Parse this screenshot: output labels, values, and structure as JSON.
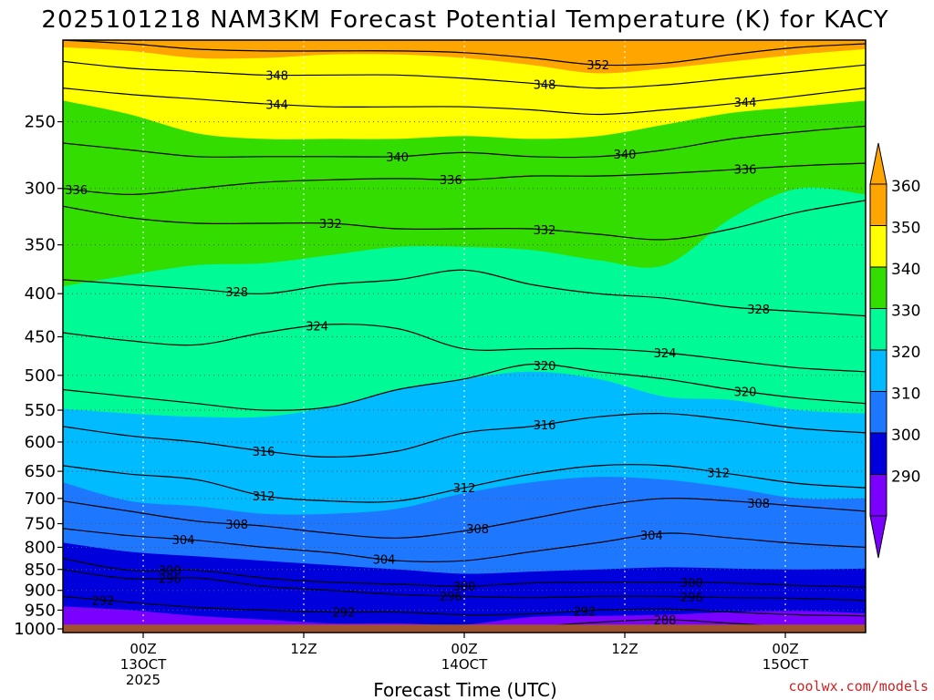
{
  "chart_data": {
    "type": "contour",
    "title": "2025101218 NAM3KM Forecast Potential Temperature (K) for KACY",
    "xlabel": "Forecast Time (UTC)",
    "ylabel": "",
    "y_scale": "log-pressure",
    "y_axis_units": "hPa",
    "ylim": [
      1000,
      200
    ],
    "y_ticks": [
      250,
      300,
      350,
      400,
      450,
      500,
      550,
      600,
      650,
      700,
      750,
      800,
      850,
      900,
      950,
      1000
    ],
    "x_ticks": [
      {
        "hours": 6,
        "line1": "00Z",
        "line2": "13OCT",
        "line3": "2025"
      },
      {
        "hours": 18,
        "line1": "12Z",
        "line2": "",
        "line3": ""
      },
      {
        "hours": 30,
        "line1": "00Z",
        "line2": "14OCT",
        "line3": ""
      },
      {
        "hours": 42,
        "line1": "12Z",
        "line2": "",
        "line3": ""
      },
      {
        "hours": 54,
        "line1": "00Z",
        "line2": "15OCT",
        "line3": ""
      }
    ],
    "xlim_hours": [
      0,
      60
    ],
    "grid": "dotted",
    "colorbar": {
      "placement": "right",
      "labels": [
        "360",
        "350",
        "340",
        "330",
        "320",
        "310",
        "300",
        "290"
      ],
      "bins": [
        {
          "from": 350,
          "to": 360,
          "color": "#FFA500"
        },
        {
          "from": 340,
          "to": 350,
          "color": "#FFFF00"
        },
        {
          "from": 330,
          "to": 340,
          "color": "#33DD00"
        },
        {
          "from": 320,
          "to": 330,
          "color": "#00FA96"
        },
        {
          "from": 310,
          "to": 320,
          "color": "#00BBFF"
        },
        {
          "from": 300,
          "to": 310,
          "color": "#1E78FF"
        },
        {
          "from": 290,
          "to": 300,
          "color": "#0000DD"
        },
        {
          "from": 280,
          "to": 290,
          "color": "#7A00FF"
        }
      ],
      "under_color": "#7A00FF",
      "over_color": "#FFA500"
    },
    "ground_color": "#A0522D",
    "contour_interval_K": 4,
    "isentropes": [
      {
        "theta": 288,
        "labels": [
          {
            "hours": 45,
            "text": "288"
          }
        ],
        "pressure": [
          1003,
          1003,
          1003,
          1003,
          1002,
          1001,
          1000,
          994,
          982,
          975,
          985,
          995,
          1000
        ]
      },
      {
        "theta": 292,
        "labels": [
          {
            "hours": 3,
            "text": "292"
          },
          {
            "hours": 21,
            "text": "292"
          },
          {
            "hours": 39,
            "text": "292"
          }
        ],
        "pressure": [
          915,
          930,
          943,
          950,
          955,
          955,
          962,
          960,
          950,
          947,
          955,
          962,
          965
        ]
      },
      {
        "theta": 296,
        "labels": [
          {
            "hours": 8,
            "text": "296"
          },
          {
            "hours": 29,
            "text": "296"
          },
          {
            "hours": 47,
            "text": "296"
          }
        ],
        "pressure": [
          850,
          872,
          870,
          890,
          900,
          910,
          915,
          918,
          915,
          915,
          918,
          920,
          925
        ]
      },
      {
        "theta": 300,
        "labels": [
          {
            "hours": 8,
            "text": "300"
          },
          {
            "hours": 30,
            "text": "300"
          },
          {
            "hours": 47,
            "text": "300"
          }
        ],
        "pressure": [
          825,
          852,
          852,
          870,
          880,
          885,
          890,
          882,
          880,
          880,
          882,
          888,
          892
        ]
      },
      {
        "theta": 304,
        "labels": [
          {
            "hours": 9,
            "text": "304"
          },
          {
            "hours": 24,
            "text": "304"
          },
          {
            "hours": 44,
            "text": "304"
          }
        ],
        "pressure": [
          760,
          775,
          785,
          800,
          812,
          830,
          830,
          810,
          790,
          770,
          780,
          792,
          800
        ]
      },
      {
        "theta": 308,
        "labels": [
          {
            "hours": 13,
            "text": "308"
          },
          {
            "hours": 31,
            "text": "308"
          },
          {
            "hours": 52,
            "text": "308"
          }
        ],
        "pressure": [
          705,
          725,
          745,
          755,
          770,
          780,
          765,
          740,
          715,
          700,
          705,
          715,
          725
        ]
      },
      {
        "theta": 312,
        "labels": [
          {
            "hours": 15,
            "text": "312"
          },
          {
            "hours": 30,
            "text": "312"
          },
          {
            "hours": 49,
            "text": "312"
          }
        ],
        "pressure": [
          640,
          655,
          665,
          695,
          705,
          705,
          680,
          655,
          640,
          640,
          655,
          672,
          680
        ]
      },
      {
        "theta": 316,
        "labels": [
          {
            "hours": 15,
            "text": "316"
          },
          {
            "hours": 36,
            "text": "316"
          }
        ],
        "pressure": [
          575,
          590,
          600,
          615,
          625,
          615,
          585,
          575,
          560,
          555,
          565,
          578,
          585
        ]
      },
      {
        "theta": 320,
        "labels": [
          {
            "hours": 36,
            "text": "320"
          },
          {
            "hours": 51,
            "text": "320"
          }
        ],
        "pressure": [
          520,
          530,
          540,
          550,
          545,
          520,
          505,
          485,
          495,
          505,
          520,
          532,
          540
        ]
      },
      {
        "theta": 324,
        "labels": [
          {
            "hours": 19,
            "text": "324"
          },
          {
            "hours": 45,
            "text": "324"
          }
        ],
        "pressure": [
          445,
          455,
          460,
          445,
          435,
          440,
          465,
          465,
          465,
          470,
          480,
          490,
          495
        ]
      },
      {
        "theta": 328,
        "labels": [
          {
            "hours": 13,
            "text": "328"
          },
          {
            "hours": 52,
            "text": "328"
          }
        ],
        "pressure": [
          385,
          390,
          395,
          400,
          390,
          385,
          375,
          390,
          400,
          405,
          415,
          420,
          425
        ]
      },
      {
        "theta": 332,
        "labels": [
          {
            "hours": 20,
            "text": "332"
          },
          {
            "hours": 36,
            "text": "332"
          }
        ],
        "pressure": [
          315,
          325,
          330,
          330,
          330,
          335,
          335,
          335,
          340,
          345,
          335,
          320,
          310
        ]
      },
      {
        "theta": 336,
        "labels": [
          {
            "hours": 1,
            "text": "336"
          },
          {
            "hours": 29,
            "text": "336"
          },
          {
            "hours": 51,
            "text": "336"
          }
        ],
        "pressure": [
          300,
          305,
          300,
          295,
          293,
          292,
          293,
          290,
          290,
          288,
          285,
          282,
          280
        ]
      },
      {
        "theta": 340,
        "labels": [
          {
            "hours": 25,
            "text": "340"
          },
          {
            "hours": 42,
            "text": "340"
          }
        ],
        "pressure": [
          265,
          270,
          275,
          275,
          275,
          275,
          272,
          275,
          275,
          270,
          262,
          257,
          253
        ]
      },
      {
        "theta": 344,
        "labels": [
          {
            "hours": 16,
            "text": "344"
          },
          {
            "hours": 51,
            "text": "344"
          }
        ],
        "pressure": [
          228,
          232,
          235,
          238,
          240,
          240,
          240,
          242,
          245,
          242,
          238,
          233,
          228
        ]
      },
      {
        "theta": 348,
        "labels": [
          {
            "hours": 16,
            "text": "348"
          },
          {
            "hours": 36,
            "text": "348"
          }
        ],
        "pressure": [
          212,
          216,
          218,
          220,
          220,
          220,
          222,
          225,
          228,
          226,
          222,
          218,
          214
        ]
      },
      {
        "theta": 352,
        "labels": [
          {
            "hours": 40,
            "text": "352"
          }
        ],
        "pressure": [
          200,
          202,
          205,
          206,
          206,
          206,
          207,
          210,
          214,
          213,
          208,
          204,
          202
        ]
      }
    ],
    "fill_layers": [
      {
        "color": "#FFA500",
        "pressure": [
          195,
          195,
          195,
          195,
          195,
          195,
          195,
          195,
          195,
          195,
          195,
          195,
          195
        ]
      },
      {
        "color": "#FFFF00",
        "pressure": [
          204,
          206,
          210,
          210,
          208,
          208,
          210,
          214,
          219,
          216,
          212,
          208,
          205
        ]
      },
      {
        "color": "#33DD00",
        "pressure": [
          236,
          245,
          258,
          262,
          262,
          262,
          260,
          262,
          260,
          252,
          244,
          240,
          236
        ]
      },
      {
        "color": "#00FA96",
        "pressure": [
          392,
          380,
          370,
          368,
          360,
          352,
          352,
          355,
          365,
          370,
          325,
          300,
          305
        ]
      },
      {
        "color": "#00BBFF",
        "pressure": [
          548,
          555,
          560,
          560,
          545,
          520,
          505,
          495,
          505,
          530,
          535,
          550,
          555
        ]
      },
      {
        "color": "#1E78FF",
        "pressure": [
          670,
          705,
          715,
          730,
          730,
          720,
          690,
          670,
          660,
          665,
          680,
          700,
          700
        ]
      },
      {
        "color": "#0000DD",
        "pressure": [
          790,
          810,
          820,
          830,
          840,
          850,
          860,
          855,
          850,
          845,
          848,
          850,
          848
        ]
      },
      {
        "color": "#7A00FF",
        "pressure": [
          940,
          950,
          965,
          975,
          985,
          985,
          988,
          968,
          965,
          962,
          955,
          952,
          958
        ]
      }
    ],
    "ground_pressure": 1003,
    "series_hours": [
      0,
      5,
      10,
      15,
      20,
      25,
      30,
      35,
      40,
      45,
      50,
      55,
      60
    ]
  },
  "credit": "coolwx.com/models"
}
